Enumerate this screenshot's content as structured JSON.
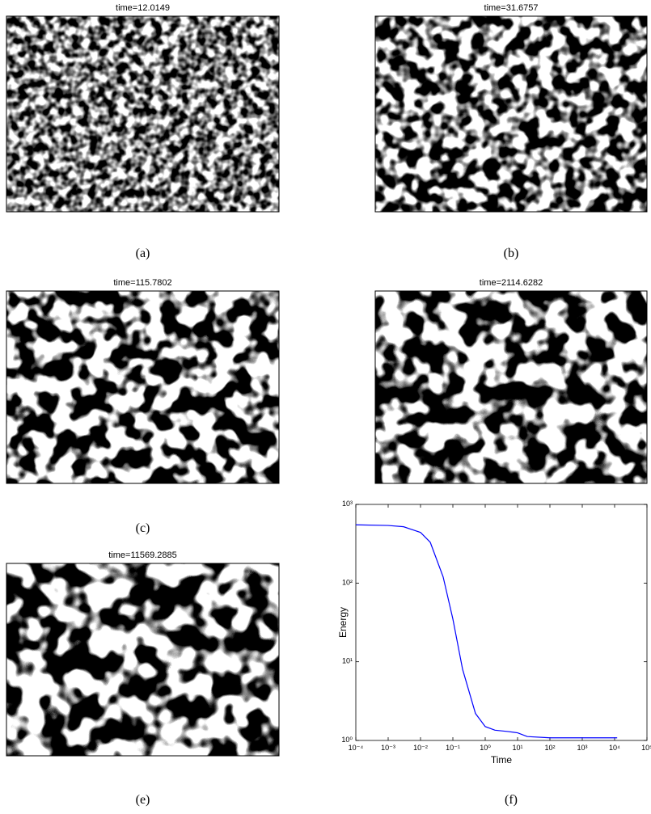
{
  "panels": [
    {
      "title": "time=12.0149",
      "caption": "(a)"
    },
    {
      "title": "time=31.6757",
      "caption": "(b)"
    },
    {
      "title": "time=115.7802",
      "caption": "(c)"
    },
    {
      "title": "time=2114.6282",
      "caption": "(d)"
    },
    {
      "title": "time=11569.2885",
      "caption": "(e)"
    }
  ],
  "chart_data": {
    "type": "line",
    "caption": "(f)",
    "xlabel": "Time",
    "ylabel": "Energy",
    "xscale": "log",
    "yscale": "log",
    "x": [
      0.0001,
      0.001,
      0.003,
      0.01,
      0.02,
      0.05,
      0.1,
      0.2,
      0.5,
      1,
      2,
      5,
      10,
      20,
      100,
      1000,
      12000
    ],
    "series": [
      {
        "name": "Energy",
        "color": "#0000ff",
        "values": [
          550,
          540,
          520,
          440,
          330,
          120,
          35,
          8,
          2.2,
          1.5,
          1.35,
          1.3,
          1.25,
          1.12,
          1.08,
          1.08,
          1.08
        ]
      }
    ],
    "xlim": [
      0.0001,
      100000
    ],
    "ylim": [
      1,
      1000
    ],
    "xticks": [
      {
        "value": 0.0001,
        "label": "10⁻⁴"
      },
      {
        "value": 0.001,
        "label": "10⁻³"
      },
      {
        "value": 0.01,
        "label": "10⁻²"
      },
      {
        "value": 0.1,
        "label": "10⁻¹"
      },
      {
        "value": 1,
        "label": "10⁰"
      },
      {
        "value": 10,
        "label": "10¹"
      },
      {
        "value": 100,
        "label": "10²"
      },
      {
        "value": 1000,
        "label": "10³"
      },
      {
        "value": 10000,
        "label": "10⁴"
      },
      {
        "value": 100000,
        "label": "10⁵"
      }
    ],
    "yticks": [
      {
        "value": 1,
        "label": "10⁰"
      },
      {
        "value": 10,
        "label": "10¹"
      },
      {
        "value": 100,
        "label": "10²"
      },
      {
        "value": 1000,
        "label": "10³"
      }
    ]
  }
}
